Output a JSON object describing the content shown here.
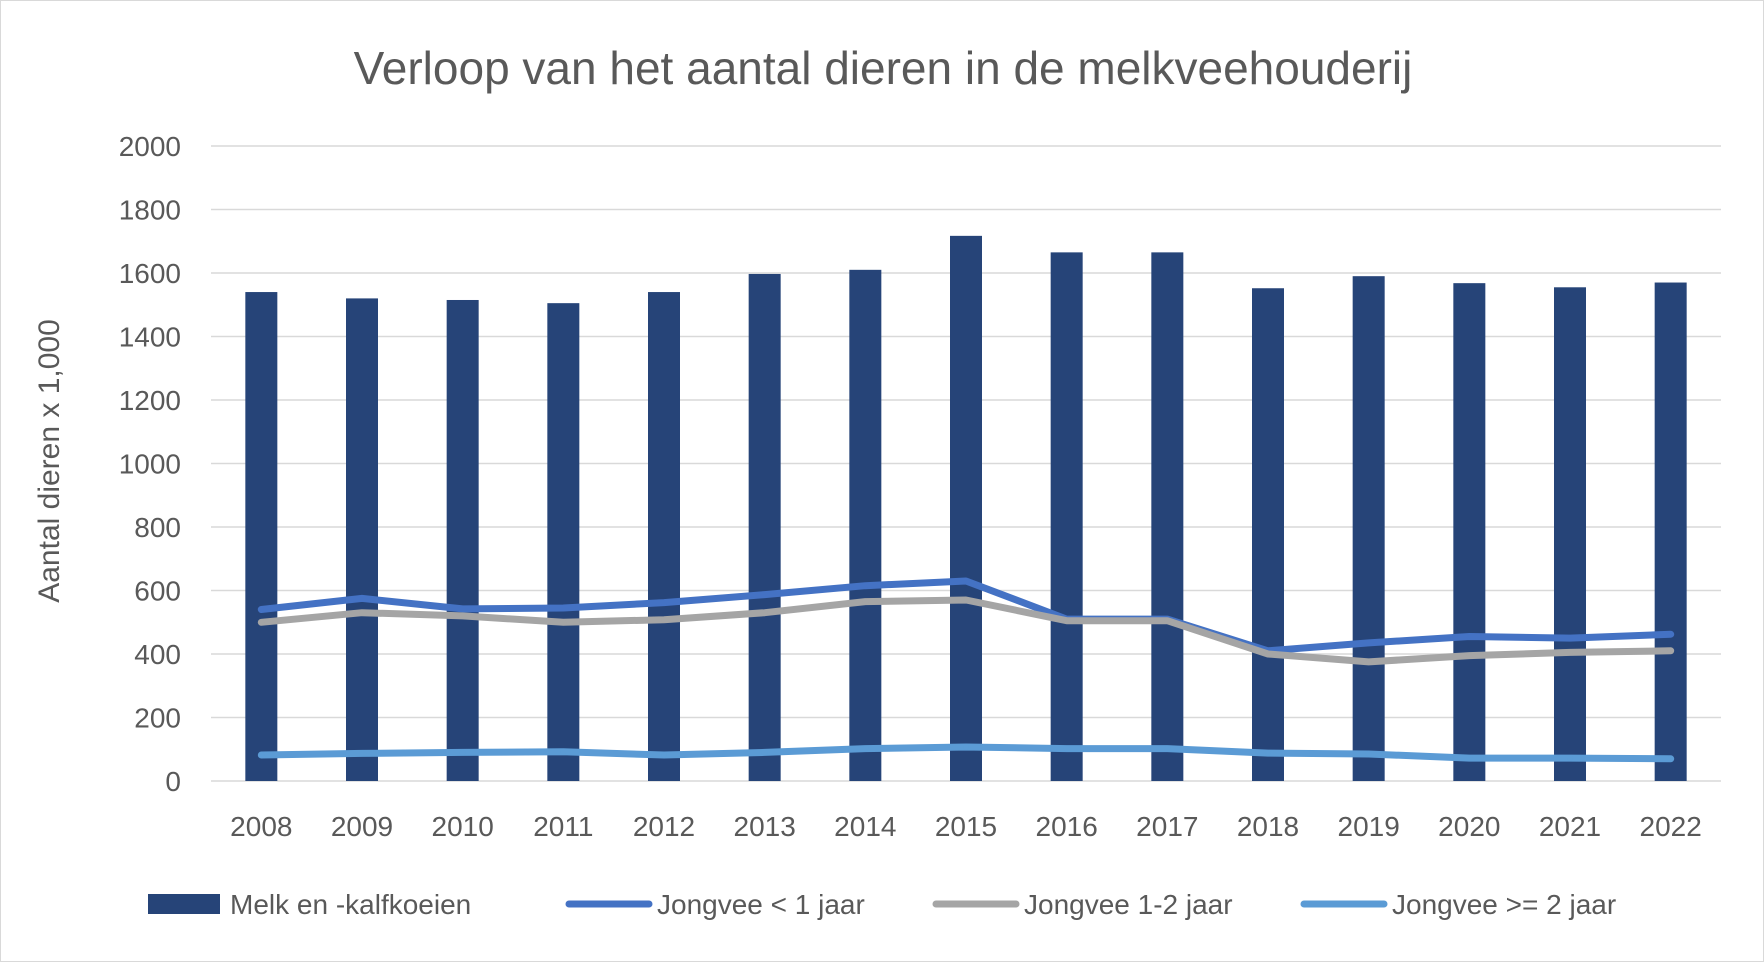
{
  "chart_data": {
    "type": "bar",
    "title": "Verloop van het aantal dieren in de melkveehouderij",
    "xlabel": "",
    "ylabel": "Aantal dieren x 1,000",
    "ylim": [
      0,
      2000
    ],
    "y_ticks": [
      0,
      200,
      400,
      600,
      800,
      1000,
      1200,
      1400,
      1600,
      1800,
      2000
    ],
    "grid": true,
    "legend_position": "bottom",
    "categories": [
      "2008",
      "2009",
      "2010",
      "2011",
      "2012",
      "2013",
      "2014",
      "2015",
      "2016",
      "2017",
      "2018",
      "2019",
      "2020",
      "2021",
      "2022"
    ],
    "series": [
      {
        "name": "Melk en -kalfkoeien",
        "kind": "bar",
        "color": "#264478",
        "values": [
          1540,
          1520,
          1515,
          1505,
          1540,
          1597,
          1610,
          1717,
          1665,
          1665,
          1552,
          1590,
          1568,
          1555,
          1570
        ]
      },
      {
        "name": "Jongvee < 1 jaar",
        "kind": "line",
        "color": "#4472C4",
        "values": [
          540,
          575,
          542,
          545,
          562,
          587,
          615,
          630,
          510,
          510,
          410,
          435,
          455,
          450,
          462
        ]
      },
      {
        "name": "Jongvee 1-2 jaar",
        "kind": "line",
        "color": "#A5A5A5",
        "values": [
          500,
          530,
          520,
          500,
          508,
          530,
          565,
          570,
          505,
          505,
          400,
          375,
          395,
          405,
          410
        ]
      },
      {
        "name": "Jongvee >= 2 jaar",
        "kind": "line",
        "color": "#5B9BD5",
        "values": [
          82,
          87,
          90,
          92,
          82,
          90,
          102,
          107,
          102,
          102,
          88,
          85,
          72,
          72,
          70
        ]
      }
    ]
  }
}
